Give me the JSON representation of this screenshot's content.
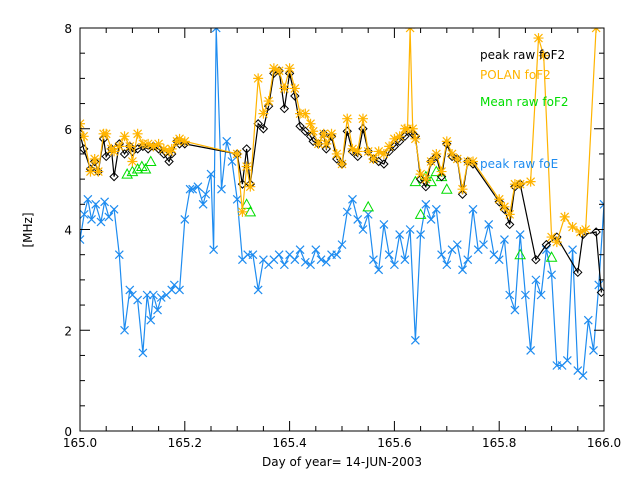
{
  "chart_data": {
    "type": "line",
    "title": "",
    "xlabel": "Day of year= 14-JUN-2003",
    "ylabel": "[MHz]",
    "xlim": [
      165.0,
      166.0
    ],
    "ylim": [
      0,
      8
    ],
    "xticks": [
      165.0,
      165.2,
      165.4,
      165.6,
      165.8,
      166.0
    ],
    "xtick_labels": [
      "165.0",
      "165.2",
      "165.4",
      "165.6",
      "165.8",
      "166.0"
    ],
    "yticks": [
      0,
      2,
      4,
      6,
      8
    ],
    "ytick_labels": [
      "0",
      "2",
      "4",
      "6",
      "8"
    ],
    "grid": false,
    "legend_position": "top-right",
    "series": [
      {
        "name": "peak raw foF2",
        "color": "#000000",
        "marker": "diamond",
        "x": [
          165.0,
          165.007,
          165.02,
          165.028,
          165.035,
          165.045,
          165.05,
          165.06,
          165.065,
          165.075,
          165.085,
          165.095,
          165.1,
          165.11,
          165.12,
          165.13,
          165.14,
          165.15,
          165.16,
          165.17,
          165.175,
          165.185,
          165.19,
          165.2,
          165.3,
          165.31,
          165.318,
          165.325,
          165.34,
          165.35,
          165.36,
          165.37,
          165.38,
          165.39,
          165.4,
          165.41,
          165.42,
          165.43,
          165.44,
          165.445,
          165.455,
          165.465,
          165.47,
          165.48,
          165.49,
          165.5,
          165.51,
          165.52,
          165.53,
          165.54,
          165.55,
          165.56,
          165.57,
          165.58,
          165.59,
          165.6,
          165.61,
          165.62,
          165.63,
          165.635,
          165.64,
          165.65,
          165.66,
          165.67,
          165.68,
          165.69,
          165.7,
          165.71,
          165.72,
          165.73,
          165.74,
          165.75,
          165.8,
          165.81,
          165.82,
          165.83,
          165.84,
          165.87,
          165.89,
          165.91,
          165.95,
          165.96,
          165.985,
          165.995
        ],
        "y": [
          5.9,
          5.6,
          5.2,
          5.35,
          5.15,
          5.8,
          5.45,
          5.6,
          5.05,
          5.7,
          5.5,
          5.65,
          5.55,
          5.6,
          5.65,
          5.6,
          5.65,
          5.6,
          5.5,
          5.35,
          5.5,
          5.75,
          5.7,
          5.7,
          5.5,
          4.9,
          5.6,
          4.9,
          6.1,
          6.0,
          6.45,
          7.1,
          7.15,
          6.4,
          7.1,
          6.65,
          6.05,
          5.95,
          5.85,
          5.75,
          5.7,
          5.9,
          5.6,
          5.85,
          5.4,
          5.3,
          5.95,
          5.55,
          5.45,
          6.0,
          5.55,
          5.4,
          5.35,
          5.3,
          5.55,
          5.65,
          5.75,
          5.85,
          5.95,
          5.9,
          5.85,
          5.0,
          4.85,
          5.35,
          5.45,
          5.05,
          5.7,
          5.45,
          5.4,
          4.7,
          5.35,
          5.3,
          4.55,
          4.4,
          4.1,
          4.85,
          4.9,
          3.4,
          3.7,
          3.85,
          3.15,
          3.9,
          3.95,
          2.75
        ]
      },
      {
        "name": "POLAN foF2",
        "color": "#ffb400",
        "marker": "asterisk",
        "x": [
          165.0,
          165.007,
          165.02,
          165.028,
          165.035,
          165.045,
          165.05,
          165.06,
          165.065,
          165.075,
          165.085,
          165.095,
          165.1,
          165.11,
          165.12,
          165.13,
          165.14,
          165.15,
          165.16,
          165.17,
          165.175,
          165.185,
          165.19,
          165.2,
          165.3,
          165.31,
          165.318,
          165.325,
          165.34,
          165.35,
          165.36,
          165.37,
          165.38,
          165.39,
          165.4,
          165.41,
          165.42,
          165.43,
          165.44,
          165.445,
          165.455,
          165.465,
          165.47,
          165.48,
          165.49,
          165.5,
          165.51,
          165.52,
          165.53,
          165.54,
          165.55,
          165.56,
          165.57,
          165.58,
          165.59,
          165.6,
          165.61,
          165.62,
          165.625,
          165.63,
          165.635,
          165.64,
          165.65,
          165.66,
          165.67,
          165.68,
          165.69,
          165.7,
          165.71,
          165.72,
          165.73,
          165.74,
          165.75,
          165.8,
          165.81,
          165.82,
          165.83,
          165.84,
          165.86,
          165.875,
          165.885,
          165.9,
          165.91,
          165.925,
          165.94,
          165.955,
          165.965,
          165.985
        ],
        "y": [
          6.1,
          5.85,
          5.15,
          5.4,
          5.15,
          5.9,
          5.9,
          5.6,
          5.55,
          5.65,
          5.85,
          5.65,
          5.35,
          5.9,
          5.7,
          5.7,
          5.65,
          5.7,
          5.6,
          5.55,
          5.6,
          5.75,
          5.8,
          5.75,
          5.5,
          4.35,
          5.25,
          4.85,
          7.0,
          6.3,
          6.55,
          7.2,
          7.15,
          6.8,
          7.2,
          6.8,
          6.3,
          6.3,
          6.1,
          5.95,
          5.7,
          5.9,
          5.7,
          5.9,
          5.5,
          5.3,
          6.2,
          5.6,
          5.55,
          6.2,
          5.55,
          5.4,
          5.55,
          5.5,
          5.65,
          5.8,
          5.85,
          6.0,
          6.0,
          8.0,
          6.0,
          5.8,
          5.1,
          5.0,
          5.35,
          5.5,
          5.15,
          5.75,
          5.5,
          5.4,
          4.8,
          5.35,
          5.35,
          4.6,
          4.45,
          4.3,
          4.9,
          4.9,
          4.95,
          7.8,
          7.45,
          3.85,
          3.75,
          4.25,
          4.05,
          3.95,
          4.0,
          8.0
        ]
      },
      {
        "name": "Mean raw foF2",
        "color": "#00dd00",
        "marker": "triangle",
        "x": [
          165.09,
          165.1,
          165.11,
          165.118,
          165.125,
          165.135,
          165.318,
          165.325,
          165.55,
          165.64,
          165.65,
          165.66,
          165.67,
          165.68,
          165.69,
          165.7,
          165.84,
          165.9
        ],
        "y": [
          5.1,
          5.15,
          5.2,
          5.25,
          5.2,
          5.35,
          4.5,
          4.35,
          4.45,
          4.95,
          4.3,
          5.05,
          4.95,
          5.15,
          5.05,
          4.8,
          3.5,
          3.45
        ]
      },
      {
        "name": "peak raw foE",
        "color": "#1e8cf0",
        "marker": "x",
        "x": [
          165.0,
          165.008,
          165.015,
          165.022,
          165.03,
          165.04,
          165.047,
          165.055,
          165.065,
          165.075,
          165.085,
          165.095,
          165.1,
          165.11,
          165.12,
          165.128,
          165.135,
          165.14,
          165.148,
          165.155,
          165.165,
          165.175,
          165.18,
          165.19,
          165.2,
          165.21,
          165.215,
          165.225,
          165.235,
          165.24,
          165.25,
          165.255,
          165.26,
          165.27,
          165.28,
          165.29,
          165.3,
          165.31,
          165.32,
          165.33,
          165.34,
          165.35,
          165.36,
          165.37,
          165.38,
          165.39,
          165.4,
          165.41,
          165.42,
          165.43,
          165.44,
          165.45,
          165.46,
          165.47,
          165.48,
          165.49,
          165.5,
          165.51,
          165.52,
          165.53,
          165.54,
          165.55,
          165.56,
          165.57,
          165.58,
          165.59,
          165.6,
          165.61,
          165.62,
          165.63,
          165.64,
          165.65,
          165.66,
          165.67,
          165.68,
          165.69,
          165.7,
          165.71,
          165.72,
          165.73,
          165.74,
          165.75,
          165.76,
          165.77,
          165.78,
          165.79,
          165.8,
          165.81,
          165.82,
          165.83,
          165.84,
          165.85,
          165.86,
          165.87,
          165.88,
          165.89,
          165.9,
          165.91,
          165.92,
          165.93,
          165.94,
          165.95,
          165.96,
          165.97,
          165.98,
          165.99,
          166.0
        ],
        "y": [
          3.8,
          4.3,
          4.6,
          4.2,
          4.5,
          4.15,
          4.55,
          4.25,
          4.4,
          3.5,
          2.0,
          2.8,
          2.7,
          2.6,
          1.55,
          2.7,
          2.2,
          2.7,
          2.4,
          2.65,
          2.7,
          2.8,
          2.9,
          2.8,
          4.2,
          4.8,
          4.8,
          4.85,
          4.5,
          4.7,
          5.1,
          3.6,
          8.0,
          4.8,
          5.75,
          5.35,
          4.6,
          3.4,
          3.5,
          3.5,
          2.8,
          3.4,
          3.3,
          3.4,
          3.5,
          3.3,
          3.5,
          3.4,
          3.6,
          3.35,
          3.3,
          3.6,
          3.4,
          3.35,
          3.5,
          3.5,
          3.7,
          4.35,
          4.6,
          4.2,
          4.0,
          4.3,
          3.4,
          3.2,
          4.1,
          3.5,
          3.3,
          3.9,
          3.4,
          4.0,
          1.8,
          3.9,
          4.5,
          4.2,
          4.4,
          3.5,
          3.3,
          3.6,
          3.7,
          3.2,
          3.4,
          4.4,
          3.6,
          3.7,
          4.1,
          3.5,
          3.4,
          3.8,
          2.7,
          2.4,
          3.9,
          2.7,
          1.6,
          3.0,
          2.7,
          3.6,
          3.1,
          1.3,
          1.3,
          1.4,
          3.6,
          1.2,
          1.1,
          2.2,
          1.6,
          2.9,
          4.5
        ]
      }
    ]
  }
}
